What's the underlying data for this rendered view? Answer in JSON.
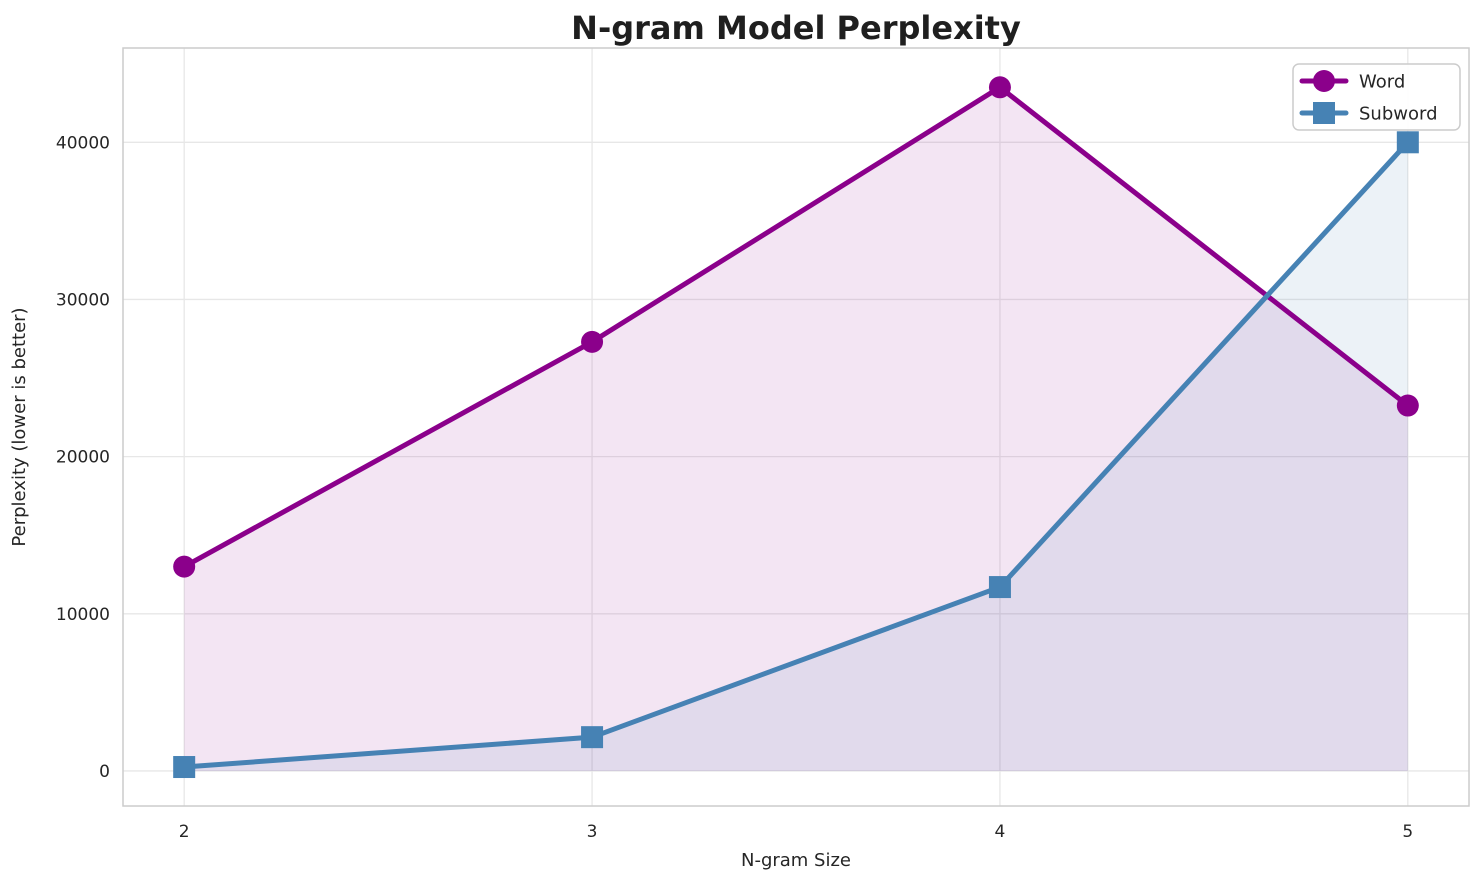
{
  "chart_data": {
    "type": "line",
    "title": "N-gram Model Perplexity",
    "xlabel": "N-gram Size",
    "ylabel": "Perplexity (lower is better)",
    "x": [
      2,
      3,
      4,
      5
    ],
    "series": [
      {
        "name": "Word",
        "values": [
          13000,
          27300,
          43500,
          23250
        ],
        "color": "#8B008B",
        "marker": "circle",
        "fill_to_zero": true
      },
      {
        "name": "Subword",
        "values": [
          250,
          2150,
          11700,
          40000
        ],
        "color": "#4682B4",
        "marker": "square",
        "fill_to_zero": true
      }
    ],
    "xticks": [
      2,
      3,
      4,
      5
    ],
    "yticks": [
      0,
      10000,
      20000,
      30000,
      40000
    ],
    "ytick_labels": [
      "0",
      "10000",
      "20000",
      "30000",
      "40000"
    ],
    "xlim": [
      1.85,
      5.15
    ],
    "ylim": [
      -2230,
      46000
    ],
    "grid": true,
    "legend_position": "upper right",
    "fill_alpha": 0.1,
    "colors": {
      "grid_line": "#e7e7e7",
      "spine": "#cccccc",
      "tick_text": "#262626",
      "title_text": "#1f1f1f",
      "legend_border": "#cccccc",
      "legend_bg": "#ffffff"
    }
  }
}
